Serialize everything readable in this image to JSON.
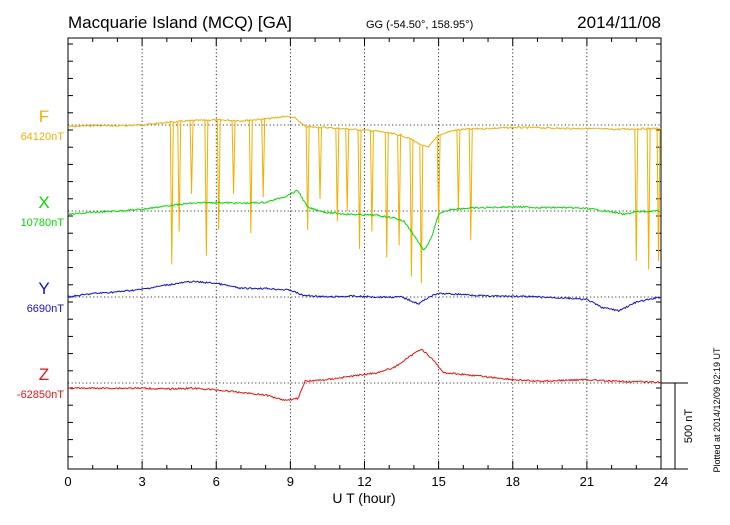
{
  "header": {
    "station": "Macquarie Island (MCQ)  [GA]",
    "coords": "GG (-54.50°, 158.95°)",
    "date": "2014/11/08"
  },
  "footer": {
    "plotted": "Plotted at 2014/12/09 02:19 UT",
    "scale_label": "500 nT"
  },
  "chart_data": {
    "type": "line",
    "xlabel": "U T (hour)",
    "xlim": [
      0,
      24
    ],
    "xticks": [
      0,
      3,
      6,
      9,
      12,
      15,
      18,
      21,
      24
    ],
    "grid": true,
    "scale_bar_nT": 500,
    "series": [
      {
        "name": "F",
        "baseline_label": "64120nT",
        "color": "#f0b000",
        "baseline_nT": 64120,
        "points": [
          [
            0,
            64110
          ],
          [
            1,
            64117
          ],
          [
            2,
            64115
          ],
          [
            3,
            64120
          ],
          [
            4,
            64135
          ],
          [
            5,
            64145
          ],
          [
            6,
            64150
          ],
          [
            7,
            64145
          ],
          [
            8,
            64155
          ],
          [
            8.8,
            64170
          ],
          [
            9.2,
            64160
          ],
          [
            9.6,
            64110
          ],
          [
            10.5,
            64105
          ],
          [
            11.5,
            64095
          ],
          [
            12.5,
            64085
          ],
          [
            13.5,
            64060
          ],
          [
            14,
            64030
          ],
          [
            14.3,
            64000
          ],
          [
            14.6,
            63995
          ],
          [
            15,
            64060
          ],
          [
            15.5,
            64085
          ],
          [
            16,
            64095
          ],
          [
            17,
            64100
          ],
          [
            18,
            64105
          ],
          [
            19,
            64105
          ],
          [
            20,
            64100
          ],
          [
            21,
            64100
          ],
          [
            22,
            64095
          ],
          [
            23,
            64098
          ],
          [
            24,
            64100
          ]
        ],
        "spikes": [
          [
            4.2,
            63310
          ],
          [
            4.5,
            63500
          ],
          [
            5.0,
            63720
          ],
          [
            5.6,
            63360
          ],
          [
            6.1,
            63510
          ],
          [
            6.7,
            63720
          ],
          [
            7.4,
            63490
          ],
          [
            7.9,
            63700
          ],
          [
            9.7,
            63510
          ],
          [
            10.2,
            63690
          ],
          [
            10.9,
            63560
          ],
          [
            11.3,
            63620
          ],
          [
            11.8,
            63400
          ],
          [
            12.3,
            63500
          ],
          [
            12.9,
            63350
          ],
          [
            13.4,
            63420
          ],
          [
            13.9,
            63240
          ],
          [
            14.3,
            63200
          ],
          [
            15.0,
            63550
          ],
          [
            15.8,
            63620
          ],
          [
            16.3,
            63450
          ],
          [
            23.0,
            63330
          ],
          [
            23.5,
            63280
          ],
          [
            23.9,
            63330
          ]
        ]
      },
      {
        "name": "X",
        "baseline_label": "10780nT",
        "color": "#00dd00",
        "baseline_nT": 10780,
        "points": [
          [
            0,
            10760
          ],
          [
            1,
            10772
          ],
          [
            2,
            10780
          ],
          [
            3,
            10790
          ],
          [
            4,
            10810
          ],
          [
            5,
            10825
          ],
          [
            6,
            10830
          ],
          [
            7,
            10825
          ],
          [
            8,
            10830
          ],
          [
            8.8,
            10865
          ],
          [
            9.3,
            10900
          ],
          [
            9.7,
            10800
          ],
          [
            10.5,
            10770
          ],
          [
            11.5,
            10760
          ],
          [
            12.5,
            10755
          ],
          [
            13.2,
            10740
          ],
          [
            13.6,
            10720
          ],
          [
            14,
            10640
          ],
          [
            14.4,
            10550
          ],
          [
            14.7,
            10620
          ],
          [
            15,
            10760
          ],
          [
            15.5,
            10790
          ],
          [
            16,
            10795
          ],
          [
            17,
            10800
          ],
          [
            18,
            10805
          ],
          [
            19,
            10800
          ],
          [
            20,
            10800
          ],
          [
            21,
            10795
          ],
          [
            22,
            10775
          ],
          [
            22.5,
            10760
          ],
          [
            23,
            10775
          ],
          [
            24,
            10780
          ]
        ]
      },
      {
        "name": "Y",
        "baseline_label": "6690nT",
        "color": "#1010dd",
        "baseline_nT": 6690,
        "points": [
          [
            0,
            6690
          ],
          [
            1,
            6710
          ],
          [
            2,
            6720
          ],
          [
            3,
            6735
          ],
          [
            4,
            6760
          ],
          [
            5,
            6780
          ],
          [
            6,
            6770
          ],
          [
            7,
            6740
          ],
          [
            8,
            6740
          ],
          [
            9,
            6730
          ],
          [
            9.5,
            6700
          ],
          [
            10.5,
            6690
          ],
          [
            11.5,
            6695
          ],
          [
            12.5,
            6690
          ],
          [
            13.5,
            6690
          ],
          [
            14.2,
            6650
          ],
          [
            14.6,
            6690
          ],
          [
            15,
            6710
          ],
          [
            16,
            6705
          ],
          [
            17,
            6695
          ],
          [
            18,
            6695
          ],
          [
            19,
            6690
          ],
          [
            20,
            6685
          ],
          [
            21,
            6675
          ],
          [
            21.6,
            6630
          ],
          [
            22.3,
            6610
          ],
          [
            23,
            6660
          ],
          [
            24,
            6690
          ]
        ]
      },
      {
        "name": "Z",
        "baseline_label": "-62850nT",
        "color": "#ee1010",
        "baseline_nT": -62850,
        "points": [
          [
            0,
            -62880
          ],
          [
            1,
            -62880
          ],
          [
            2,
            -62880
          ],
          [
            3,
            -62880
          ],
          [
            4,
            -62885
          ],
          [
            5,
            -62880
          ],
          [
            6,
            -62890
          ],
          [
            7,
            -62905
          ],
          [
            8,
            -62920
          ],
          [
            8.8,
            -62950
          ],
          [
            9.3,
            -62940
          ],
          [
            9.6,
            -62840
          ],
          [
            10.5,
            -62830
          ],
          [
            11.5,
            -62810
          ],
          [
            12.5,
            -62790
          ],
          [
            13.2,
            -62760
          ],
          [
            13.8,
            -62700
          ],
          [
            14.3,
            -62650
          ],
          [
            14.8,
            -62720
          ],
          [
            15.2,
            -62790
          ],
          [
            16,
            -62800
          ],
          [
            17,
            -62815
          ],
          [
            18,
            -62830
          ],
          [
            19,
            -62840
          ],
          [
            20,
            -62835
          ],
          [
            21,
            -62830
          ],
          [
            22,
            -62840
          ],
          [
            23,
            -62842
          ],
          [
            24,
            -62845
          ]
        ]
      }
    ]
  }
}
